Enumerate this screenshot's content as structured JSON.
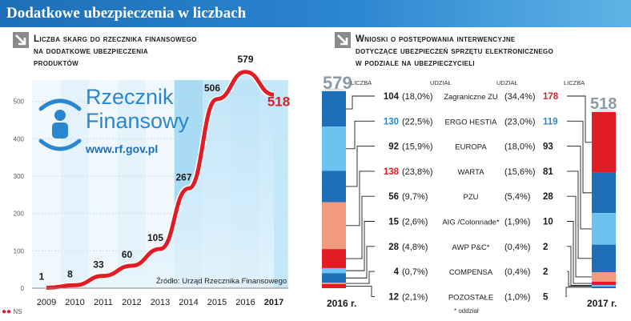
{
  "header": {
    "title": "Dodatkowe ubezpieczenia w liczbach"
  },
  "left": {
    "title_lines": [
      "Liczba skarg do rzecznika finansowego",
      "na dodatkowe ubezpieczenia",
      "produktów"
    ],
    "logo": {
      "line1": "Rzecznik",
      "line2": "Finansowy",
      "url": "www.rf.gov.pl"
    },
    "source": "Źródło: Urząd Rzecznika Finansowego"
  },
  "right": {
    "title_lines": [
      "Wnioski o postępowania interwencyjne",
      "dotyczące ubezpieczeń sprzętu elektronicznego",
      "w podziale na ubezpieczycieli"
    ],
    "header_liczba_left": "LICZBA",
    "header_udzial_left": "UDZIAŁ",
    "header_udzial_right": "UDZIAŁ",
    "header_liczba_right": "LICZBA",
    "total_2016": "579",
    "total_2017": "518",
    "year_2016": "2016 r.",
    "year_2017": "2017 r.",
    "footnote": "* oddział"
  },
  "footer": {
    "credit": "NS"
  },
  "colors": {
    "accent_red": "#e21c24",
    "blue": "#1d6fb8",
    "light_blue": "#6cc3ef",
    "salmon": "#f29a7c"
  },
  "chart_data": [
    {
      "type": "line",
      "title": "Liczba skarg do rzecznika finansowego na dodatkowe ubezpieczenia produktów",
      "categories": [
        "2009",
        "2010",
        "2011",
        "2012",
        "2013",
        "2014",
        "2015",
        "2016",
        "2017"
      ],
      "values": [
        1,
        8,
        33,
        60,
        105,
        267,
        506,
        579,
        518
      ],
      "labels": [
        "1",
        "8",
        "33",
        "60",
        "105",
        "267",
        "506",
        "579",
        "518"
      ],
      "ylim": [
        0,
        600
      ],
      "yticks": [
        "0",
        "100",
        "200",
        "300",
        "400",
        "500"
      ],
      "grid": true
    },
    {
      "type": "table",
      "title": "Wnioski o postępowania interwencyjne dotyczące ubezpieczeń sprzętu elektronicznego w podziale na ubezpieczycieli",
      "rows": [
        {
          "name": "Zagraniczne ZU",
          "n2016": "104",
          "s2016": "(18,0%)",
          "s2017": "(34,4%)",
          "n2017": "178",
          "c2016": "#1a1a1a",
          "c2017": "#e21c24"
        },
        {
          "name": "ERGO HESTIA",
          "n2016": "130",
          "s2016": "(22,5%)",
          "s2017": "(23,0%)",
          "n2017": "119",
          "c2016": "#2a86cf",
          "c2017": "#2a86cf"
        },
        {
          "name": "EUROPA",
          "n2016": "92",
          "s2016": "(15,9%)",
          "s2017": "(18,0%)",
          "n2017": "93",
          "c2016": "#1a1a1a",
          "c2017": "#1a1a1a"
        },
        {
          "name": "WARTA",
          "n2016": "138",
          "s2016": "(23,8%)",
          "s2017": "(15,6%)",
          "n2017": "81",
          "c2016": "#e21c24",
          "c2017": "#1a1a1a"
        },
        {
          "name": "PZU",
          "n2016": "56",
          "s2016": "(9,7%)",
          "s2017": "(5,4%)",
          "n2017": "28",
          "c2016": "#1a1a1a",
          "c2017": "#1a1a1a"
        },
        {
          "name": "AIG /Colonnade*",
          "n2016": "15",
          "s2016": "(2,6%)",
          "s2017": "(1,9%)",
          "n2017": "10",
          "c2016": "#1a1a1a",
          "c2017": "#1a1a1a"
        },
        {
          "name": "AWP P&C*",
          "n2016": "28",
          "s2016": "(4,8%)",
          "s2017": "(0,4%)",
          "n2017": "2",
          "c2016": "#1a1a1a",
          "c2017": "#1a1a1a"
        },
        {
          "name": "COMPENSA",
          "n2016": "4",
          "s2016": "(0,7%)",
          "s2017": "(0,4%)",
          "n2017": "2",
          "c2016": "#1a1a1a",
          "c2017": "#1a1a1a"
        },
        {
          "name": "POZOSTAŁE",
          "n2016": "12",
          "s2016": "(2,1%)",
          "s2017": "(1,0%)",
          "n2017": "5",
          "c2016": "#1a1a1a",
          "c2017": "#1a1a1a"
        }
      ],
      "segment_colors_2016": [
        "#1d6fb8",
        "#6cc3ef",
        "#1d6fb8",
        "#f29a7c",
        "#e21c24",
        "#6cc3ef",
        "#1d6fb8",
        "#f29a7c",
        "#e21c24"
      ],
      "segment_colors_2017": [
        "#e21c24",
        "#1d6fb8",
        "#6cc3ef",
        "#1d6fb8",
        "#f29a7c",
        "#e21c24",
        "#6cc3ef",
        "#f29a7c",
        "#1d6fb8"
      ]
    }
  ]
}
